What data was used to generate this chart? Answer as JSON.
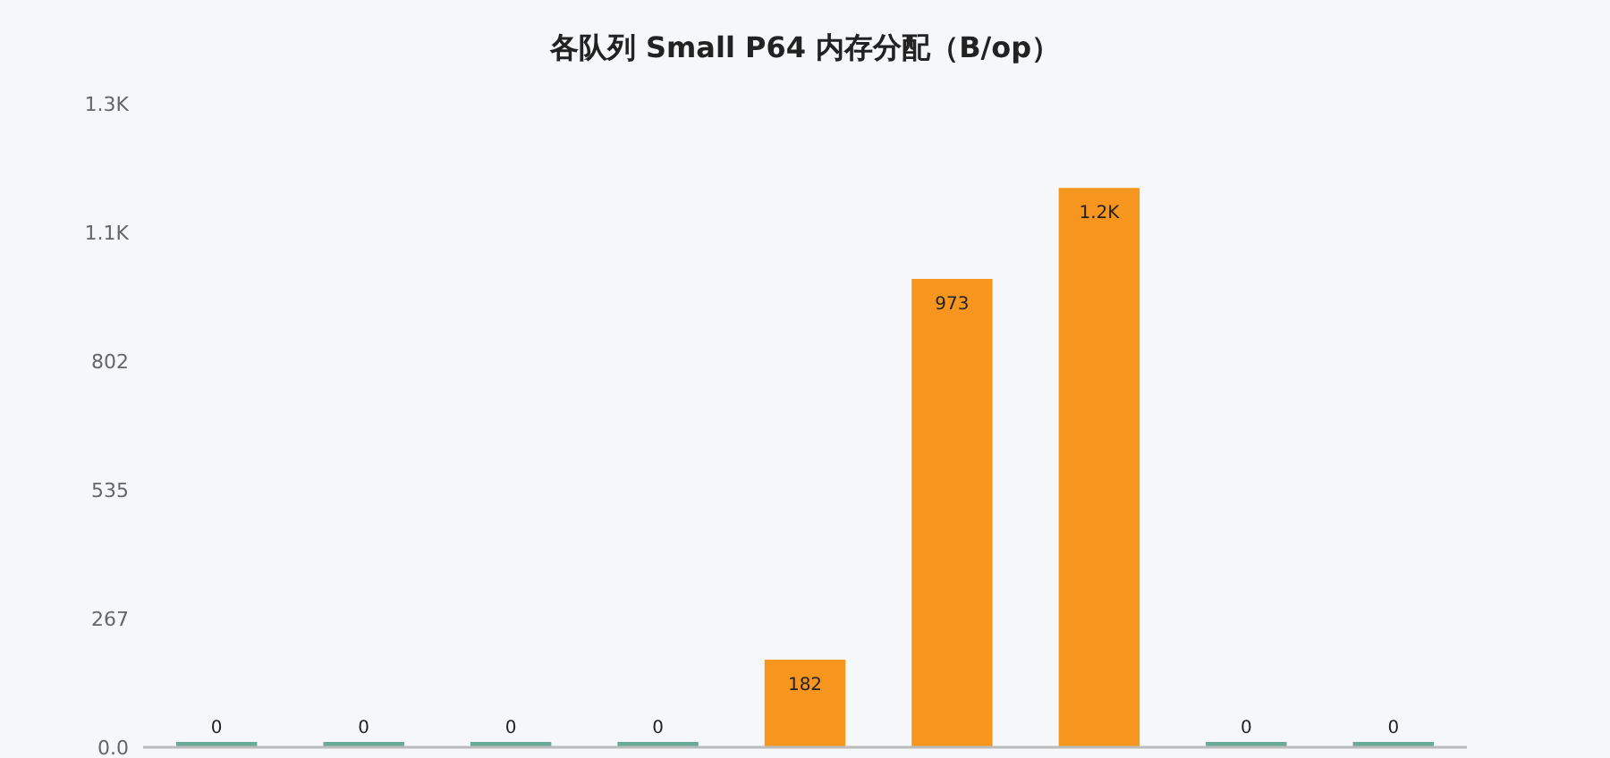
{
  "chart_data": {
    "type": "bar",
    "title": "各队列 **Small P64** 内存分配（**B/op**）",
    "categories": [
      null,
      null,
      null,
      null,
      null,
      null,
      null,
      null,
      null
    ],
    "values": [
      0,
      0,
      0,
      0,
      182,
      973,
      1162,
      0,
      0
    ],
    "value_labels": [
      "0",
      "0",
      "0",
      "0",
      "182",
      "973",
      "1.2K",
      "0",
      "0"
    ],
    "colors": [
      "#6aab96",
      "#6aab96",
      "#6aab96",
      "#6aab96",
      "#f7961e",
      "#f7961e",
      "#f7961e",
      "#6aab96",
      "#6aab96"
    ],
    "ylim": [
      0,
      1337
    ],
    "yticks": [
      {
        "value": 0,
        "label": "0.0"
      },
      267,
      535,
      802,
      {
        "value": 1070,
        "label": "1.1K"
      },
      {
        "value": 1337,
        "label": "1.3K"
      }
    ],
    "grid": false
  }
}
